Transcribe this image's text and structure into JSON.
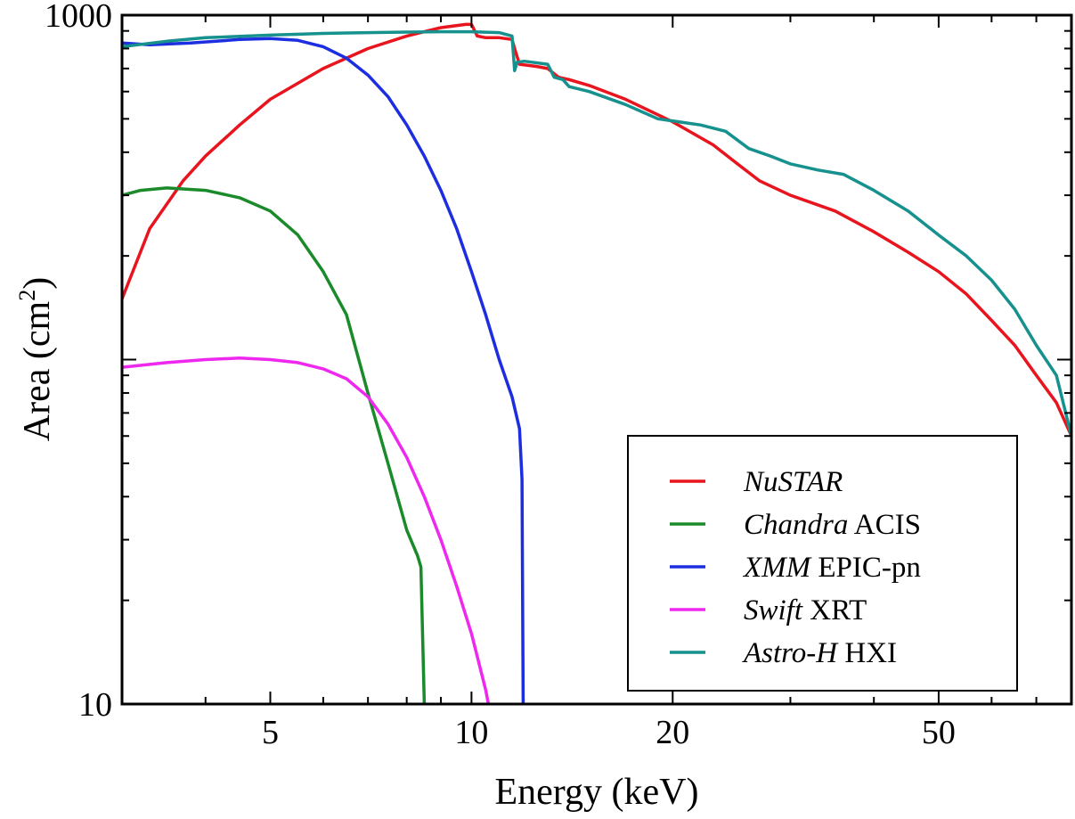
{
  "chart_data": {
    "type": "line",
    "title": "",
    "xlabel": "Energy (keV)",
    "ylabel_main": "Area (cm",
    "ylabel_sup": "2",
    "ylabel_end": ")",
    "x_scale": "log",
    "y_scale": "log",
    "xlim": [
      3,
      79
    ],
    "ylim": [
      10,
      1000
    ],
    "x_ticks": [
      {
        "value": 5,
        "label": "5"
      },
      {
        "value": 10,
        "label": "10"
      },
      {
        "value": 20,
        "label": "20"
      },
      {
        "value": 50,
        "label": "50"
      }
    ],
    "y_ticks": [
      {
        "value": 10,
        "label": "10"
      },
      {
        "value": 1000,
        "label": "1000"
      }
    ],
    "grid": false,
    "legend_position": "bottom-right",
    "series": [
      {
        "id": "nustar",
        "color": "#e8141e",
        "legend": [
          {
            "text": "NuSTAR",
            "italic": true
          }
        ],
        "points": [
          [
            3,
            150
          ],
          [
            3.3,
            240
          ],
          [
            3.7,
            330
          ],
          [
            4,
            390
          ],
          [
            4.5,
            480
          ],
          [
            5,
            570
          ],
          [
            6,
            700
          ],
          [
            7,
            800
          ],
          [
            8,
            870
          ],
          [
            9,
            920
          ],
          [
            9.8,
            940
          ],
          [
            10,
            940
          ],
          [
            10.2,
            870
          ],
          [
            10.5,
            860
          ],
          [
            11,
            860
          ],
          [
            11.5,
            850
          ],
          [
            11.6,
            800
          ],
          [
            11.8,
            720
          ],
          [
            12.5,
            710
          ],
          [
            13,
            700
          ],
          [
            13.5,
            660
          ],
          [
            14,
            650
          ],
          [
            15,
            625
          ],
          [
            17,
            570
          ],
          [
            20,
            490
          ],
          [
            23,
            420
          ],
          [
            25,
            370
          ],
          [
            27,
            330
          ],
          [
            30,
            300
          ],
          [
            35,
            270
          ],
          [
            40,
            235
          ],
          [
            45,
            205
          ],
          [
            50,
            180
          ],
          [
            55,
            155
          ],
          [
            60,
            130
          ],
          [
            65,
            110
          ],
          [
            70,
            90
          ],
          [
            75,
            75
          ],
          [
            79,
            60
          ]
        ]
      },
      {
        "id": "chandra",
        "color": "#1a8a2a",
        "legend": [
          {
            "text": "Chandra",
            "italic": true
          },
          {
            "text": " ACIS",
            "italic": false
          }
        ],
        "points": [
          [
            3,
            300
          ],
          [
            3.2,
            310
          ],
          [
            3.5,
            315
          ],
          [
            4,
            310
          ],
          [
            4.5,
            295
          ],
          [
            5,
            270
          ],
          [
            5.5,
            230
          ],
          [
            6,
            180
          ],
          [
            6.5,
            135
          ],
          [
            7,
            80
          ],
          [
            7.5,
            50
          ],
          [
            8,
            32
          ],
          [
            8.3,
            27
          ],
          [
            8.4,
            25
          ],
          [
            8.5,
            10
          ]
        ]
      },
      {
        "id": "xmm",
        "color": "#1c2ee0",
        "legend": [
          {
            "text": "XMM",
            "italic": true
          },
          {
            "text": " EPIC-pn",
            "italic": false
          }
        ],
        "points": [
          [
            3,
            830
          ],
          [
            3.3,
            820
          ],
          [
            3.8,
            830
          ],
          [
            4.5,
            850
          ],
          [
            5,
            855
          ],
          [
            5.5,
            845
          ],
          [
            6,
            810
          ],
          [
            6.5,
            750
          ],
          [
            7,
            670
          ],
          [
            7.5,
            580
          ],
          [
            8,
            480
          ],
          [
            8.5,
            390
          ],
          [
            9,
            310
          ],
          [
            9.5,
            240
          ],
          [
            10,
            180
          ],
          [
            10.5,
            135
          ],
          [
            11,
            100
          ],
          [
            11.5,
            78
          ],
          [
            11.8,
            63
          ],
          [
            11.9,
            45
          ],
          [
            11.95,
            10
          ]
        ]
      },
      {
        "id": "swift",
        "color": "#ee28ee",
        "legend": [
          {
            "text": "Swift",
            "italic": true
          },
          {
            "text": " XRT",
            "italic": false
          }
        ],
        "points": [
          [
            3,
            95
          ],
          [
            3.5,
            98
          ],
          [
            4,
            100
          ],
          [
            4.5,
            101
          ],
          [
            5,
            100
          ],
          [
            5.5,
            98
          ],
          [
            6,
            94
          ],
          [
            6.5,
            88
          ],
          [
            7,
            78
          ],
          [
            7.5,
            65
          ],
          [
            8,
            52
          ],
          [
            8.5,
            40
          ],
          [
            9,
            30
          ],
          [
            9.5,
            22
          ],
          [
            10,
            16
          ],
          [
            10.5,
            11
          ],
          [
            10.6,
            10
          ]
        ]
      },
      {
        "id": "astroh",
        "color": "#17918e",
        "legend": [
          {
            "text": "Astro-H",
            "italic": true
          },
          {
            "text": " HXI",
            "italic": false
          }
        ],
        "points": [
          [
            3,
            810
          ],
          [
            3.5,
            840
          ],
          [
            4,
            860
          ],
          [
            5,
            875
          ],
          [
            6,
            885
          ],
          [
            7,
            890
          ],
          [
            8,
            893
          ],
          [
            9,
            895
          ],
          [
            10,
            895
          ],
          [
            11,
            890
          ],
          [
            11.5,
            870
          ],
          [
            11.6,
            690
          ],
          [
            11.7,
            730
          ],
          [
            12,
            735
          ],
          [
            13,
            720
          ],
          [
            13.3,
            660
          ],
          [
            13.7,
            650
          ],
          [
            14,
            620
          ],
          [
            15,
            600
          ],
          [
            17,
            550
          ],
          [
            19,
            500
          ],
          [
            22,
            480
          ],
          [
            24,
            460
          ],
          [
            26,
            410
          ],
          [
            28,
            390
          ],
          [
            30,
            370
          ],
          [
            33,
            355
          ],
          [
            36,
            345
          ],
          [
            40,
            310
          ],
          [
            45,
            270
          ],
          [
            50,
            230
          ],
          [
            55,
            200
          ],
          [
            60,
            170
          ],
          [
            65,
            140
          ],
          [
            70,
            110
          ],
          [
            75,
            90
          ],
          [
            79,
            60
          ]
        ]
      }
    ]
  }
}
